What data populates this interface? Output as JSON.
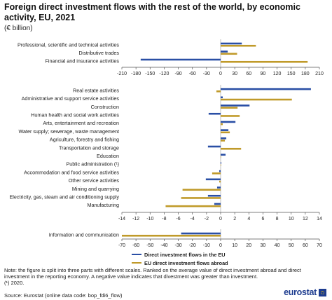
{
  "title": "Foreign direct investment flows with the rest of the world, by economic activity, EU, 2021",
  "subtitle": "(€ billion)",
  "legend": {
    "inflows": "Direct investment flows in the EU",
    "outflows": "EU direct investment flows abroad"
  },
  "note": "Note: the figure is split into three parts with different scales. Ranked on the average value of direct investment abroad and direct investment in the reporting economy. A negative value indicates that divestment was greater than investment.",
  "footnote": "(¹) 2020.",
  "source": "Source: Eurostat (online data code: bop_fdi6_flow)",
  "logo_text": "eurostat",
  "colors": {
    "inflows": "#2a4fa5",
    "outflows": "#c09a2a",
    "axis": "#555555",
    "grid": "#999999"
  },
  "chart_data": [
    {
      "type": "bar",
      "orientation": "horizontal",
      "categories": [
        "Professional, scientific and technical activities",
        "Distributive trades",
        "Financial and insurance activities"
      ],
      "series": [
        {
          "name": "Direct investment flows in the EU",
          "values": [
            45,
            15,
            -170
          ]
        },
        {
          "name": "EU direct investment flows abroad",
          "values": [
            75,
            35,
            185
          ]
        }
      ],
      "xlim": [
        -210,
        210
      ],
      "xticks": [
        -210,
        -180,
        -150,
        -120,
        -90,
        -60,
        -30,
        0,
        30,
        60,
        90,
        120,
        150,
        180,
        210
      ]
    },
    {
      "type": "bar",
      "orientation": "horizontal",
      "categories": [
        "Real estate activities",
        "Administrative and support service activities",
        "Construction",
        "Human health and social work activities",
        "Arts, entertainment and recreation",
        "Water supply; sewerage, waste management",
        "Agriculture, forestry and fishing",
        "Transportation and storage",
        "Education",
        "Public administration (¹)",
        "Accommodation and food service activities",
        "Other service activities",
        "Mining and quarrying",
        "Electricity, gas, steam and air conditioning supply",
        "Manufacturing"
      ],
      "series": [
        {
          "name": "Direct investment flows in the EU",
          "values": [
            12.8,
            0.3,
            4.1,
            -1.7,
            2.1,
            1.1,
            0.8,
            -1.8,
            0.7,
            0.1,
            -0.2,
            -2.1,
            -0.5,
            -1.8,
            -0.9
          ]
        },
        {
          "name": "EU direct investment flows abroad",
          "values": [
            -0.6,
            10.1,
            2.4,
            2.7,
            0.3,
            1.3,
            0.6,
            2.9,
            0.0,
            0.0,
            -1.2,
            -0.2,
            -5.4,
            -5.6,
            -7.8
          ]
        }
      ],
      "xlim": [
        -14,
        14
      ],
      "xticks": [
        -14,
        -12,
        -10,
        -8,
        -6,
        -4,
        -2,
        0,
        2,
        4,
        6,
        8,
        10,
        12,
        14
      ]
    },
    {
      "type": "bar",
      "orientation": "horizontal",
      "categories": [
        "Information and communication"
      ],
      "series": [
        {
          "name": "Direct investment flows in the EU",
          "values": [
            -28
          ]
        },
        {
          "name": "EU direct investment flows abroad",
          "values": [
            -70
          ]
        }
      ],
      "xlim": [
        -70,
        70
      ],
      "xticks": [
        -70,
        -60,
        -50,
        -40,
        -30,
        -20,
        -10,
        0,
        10,
        20,
        30,
        40,
        50,
        60,
        70
      ]
    }
  ]
}
